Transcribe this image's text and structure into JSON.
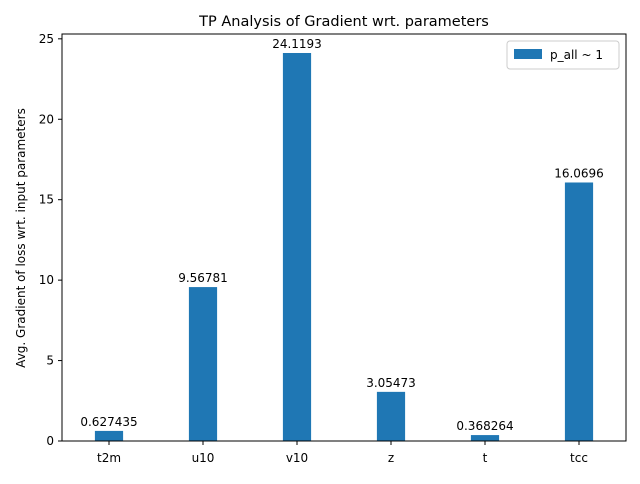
{
  "chart_data": {
    "type": "bar",
    "title": "TP Analysis of Gradient wrt. parameters",
    "xlabel": "",
    "ylabel": "Avg. Gradient of loss wrt. input parameters",
    "categories": [
      "t2m",
      "u10",
      "v10",
      "z",
      "t",
      "tcc"
    ],
    "series": [
      {
        "name": "p_all ~ 1",
        "values": [
          0.627435,
          9.56781,
          24.1193,
          3.05473,
          0.368264,
          16.0696
        ],
        "labels": [
          "0.627435",
          "9.56781",
          "24.1193",
          "3.05473",
          "0.368264",
          "16.0696"
        ]
      }
    ],
    "ylim": [
      0,
      25.3
    ],
    "yticks": [
      0,
      5,
      10,
      15,
      20,
      25
    ],
    "grid": false,
    "legend_position": "top-right",
    "colors": {
      "bar": "#1f77b4",
      "axes": "#000000",
      "background": "#ffffff"
    }
  }
}
